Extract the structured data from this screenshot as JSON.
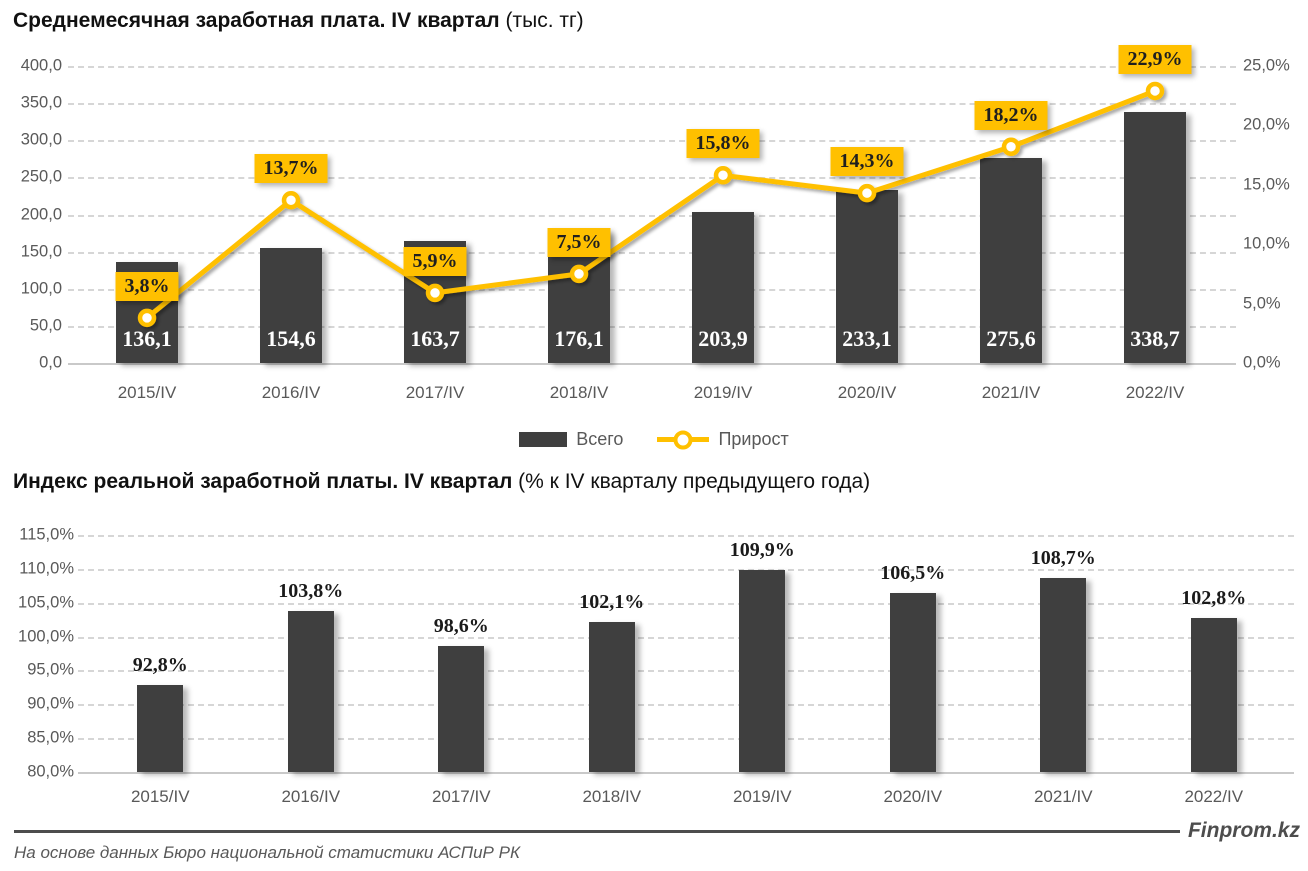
{
  "colors": {
    "bar": "#3F3F3F",
    "accent": "#FFC000",
    "axis_text": "#595959",
    "grid": "#D6D6D6",
    "bar_label": "#FFFFFF",
    "callout_text": "#1F1F1F"
  },
  "chart_data": [
    {
      "type": "bar+line",
      "title_bold": "Среднемесячная заработная плата. IV квартал",
      "title_regular": " (тыс. тг)",
      "categories": [
        "2015/IV",
        "2016/IV",
        "2017/IV",
        "2018/IV",
        "2019/IV",
        "2020/IV",
        "2021/IV",
        "2022/IV"
      ],
      "series": [
        {
          "name": "Всего",
          "type": "bar",
          "axis": "left",
          "values": [
            136.1,
            154.6,
            163.7,
            176.1,
            203.9,
            233.1,
            275.6,
            338.7
          ],
          "labels": [
            "136,1",
            "154,6",
            "163,7",
            "176,1",
            "203,9",
            "233,1",
            "275,6",
            "338,7"
          ]
        },
        {
          "name": "Прирост",
          "type": "line",
          "axis": "right",
          "values": [
            3.8,
            13.7,
            5.9,
            7.5,
            15.8,
            14.3,
            18.2,
            22.9
          ],
          "labels": [
            "3,8%",
            "13,7%",
            "5,9%",
            "7,5%",
            "15,8%",
            "14,3%",
            "18,2%",
            "22,9%"
          ]
        }
      ],
      "left_axis": {
        "min": 0,
        "max": 400,
        "tick_values": [
          400,
          350,
          300,
          250,
          200,
          150,
          100,
          50,
          0
        ],
        "tick_labels": [
          "400,0",
          "350,0",
          "300,0",
          "250,0",
          "200,0",
          "150,0",
          "100,0",
          "50,0",
          "0,0"
        ]
      },
      "right_axis": {
        "min": 0,
        "max": 25,
        "tick_values": [
          25,
          20,
          15,
          10,
          5,
          0
        ],
        "tick_labels": [
          "25,0%",
          "20,0%",
          "15,0%",
          "10,0%",
          "5,0%",
          "0,0%"
        ]
      },
      "legend_position": "bottom-center",
      "grid": true
    },
    {
      "type": "bar",
      "title_bold": "Индекс реальной заработной платы. IV квартал",
      "title_regular": " (% к IV кварталу предыдущего года)",
      "categories": [
        "2015/IV",
        "2016/IV",
        "2017/IV",
        "2018/IV",
        "2019/IV",
        "2020/IV",
        "2021/IV",
        "2022/IV"
      ],
      "values": [
        92.8,
        103.8,
        98.6,
        102.1,
        109.9,
        106.5,
        108.7,
        102.8
      ],
      "labels": [
        "92,8%",
        "103,8%",
        "98,6%",
        "102,1%",
        "109,9%",
        "106,5%",
        "108,7%",
        "102,8%"
      ],
      "y_axis": {
        "min": 80,
        "max": 115,
        "tick_values": [
          115,
          110,
          105,
          100,
          95,
          90,
          85,
          80
        ],
        "tick_labels": [
          "115,0%",
          "110,0%",
          "105,0%",
          "100,0%",
          "95,0%",
          "90,0%",
          "85,0%",
          "80,0%"
        ]
      },
      "grid": true
    }
  ],
  "footer": {
    "source": "На основе данных Бюро национальной статистики АСПиР РК",
    "brand": "Finprom.kz"
  }
}
